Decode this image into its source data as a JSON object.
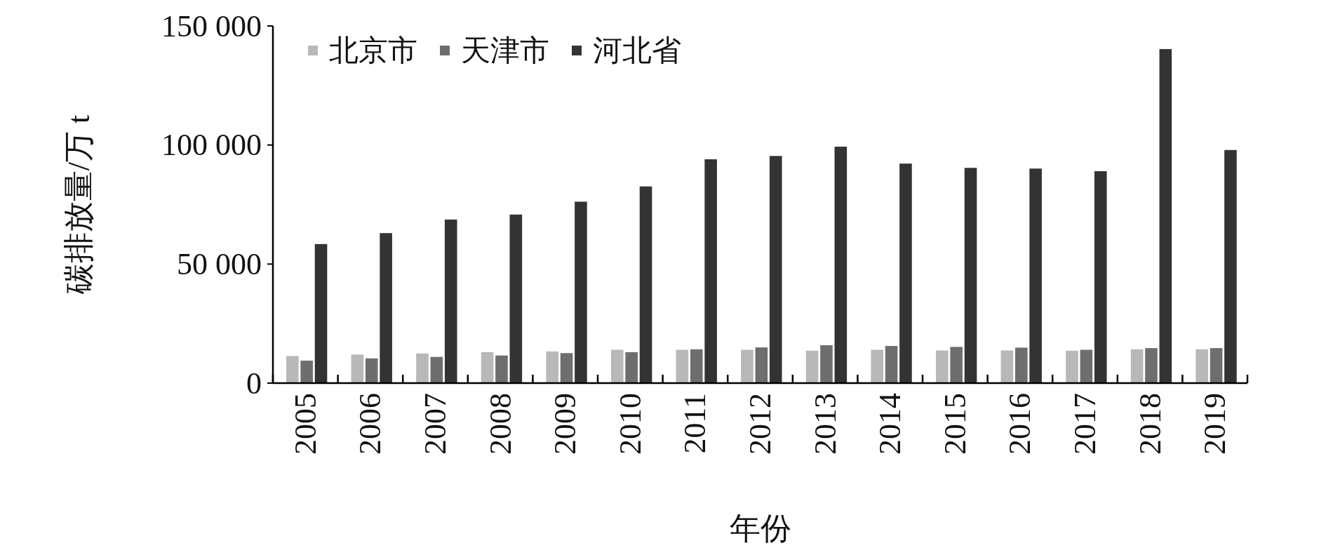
{
  "chart_data": {
    "type": "bar",
    "xlabel": "年份",
    "ylabel": "碳排放量/万 t",
    "categories": [
      "2005",
      "2006",
      "2007",
      "2008",
      "2009",
      "2010",
      "2011",
      "2012",
      "2013",
      "2014",
      "2015",
      "2016",
      "2017",
      "2018",
      "2019"
    ],
    "series": [
      {
        "name": "北京市",
        "color": "#b8b8b8",
        "values": [
          11400,
          12000,
          12450,
          13000,
          13300,
          14000,
          14000,
          14000,
          13600,
          14000,
          13700,
          13700,
          13600,
          14200,
          14200
        ]
      },
      {
        "name": "天津市",
        "color": "#6e6e6e",
        "values": [
          9450,
          10400,
          11000,
          11600,
          12600,
          13000,
          14200,
          15000,
          15900,
          15600,
          15200,
          14900,
          14000,
          14700,
          14700
        ]
      },
      {
        "name": "河北省",
        "color": "#333333",
        "values": [
          58400,
          63000,
          68700,
          70800,
          76200,
          82600,
          94000,
          95400,
          99300,
          92200,
          90400,
          90100,
          89000,
          140300,
          97900
        ]
      }
    ],
    "ylim": [
      0,
      150000
    ],
    "yticks": [
      {
        "value": 0,
        "label": "0"
      },
      {
        "value": 50000,
        "label": "50 000"
      },
      {
        "value": 100000,
        "label": "100 000"
      },
      {
        "value": 150000,
        "label": "150 000"
      }
    ],
    "grid": false,
    "legend": "top left"
  }
}
